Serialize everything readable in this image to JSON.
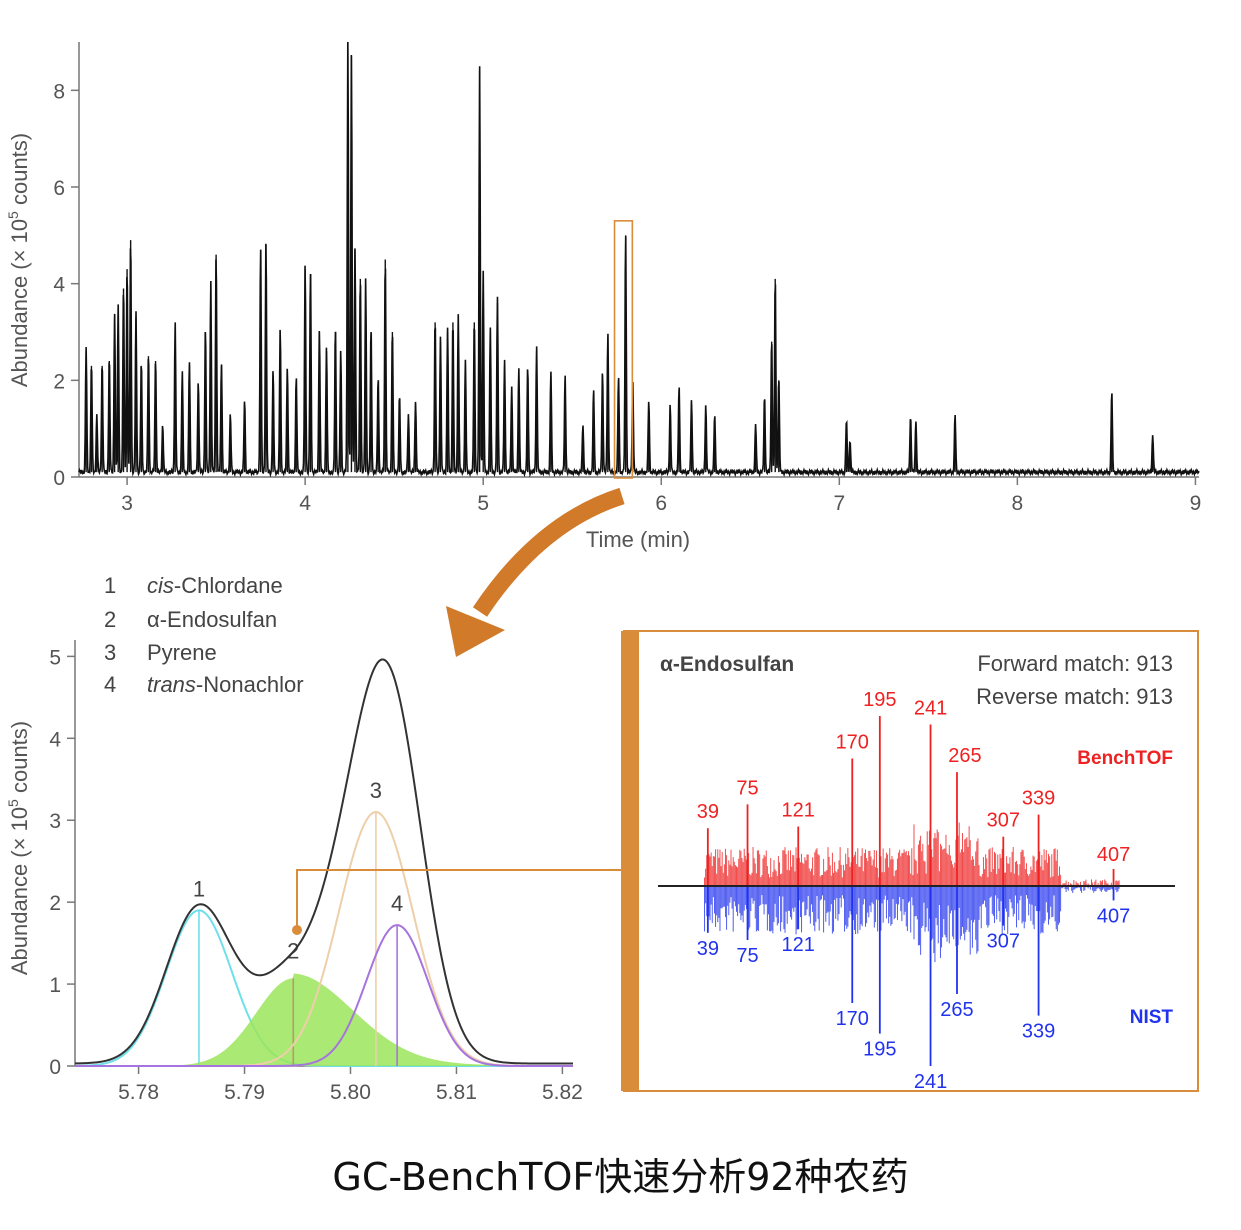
{
  "caption": "GC-BenchTOF快速分析92种农药",
  "chart_data": [
    {
      "type": "line",
      "name": "total ion chromatogram",
      "xlabel": "Time (min)",
      "ylabel": "Abundance (× 10⁵ counts)",
      "ylabel_main": "Abundance (× 10",
      "ylabel_sup": "5",
      "ylabel_end": " counts)",
      "xlim": [
        2.73,
        9.02
      ],
      "ylim": [
        0,
        9
      ],
      "xticks": [
        3,
        4,
        5,
        6,
        7,
        8,
        9
      ],
      "yticks": [
        0,
        2,
        4,
        6,
        8
      ],
      "baseline": 0.1,
      "highlight_window": [
        5.76,
        5.86
      ],
      "highlight_color": "#d98c3a",
      "peaks": [
        [
          2.77,
          2.6
        ],
        [
          2.8,
          2.3
        ],
        [
          2.83,
          1.2
        ],
        [
          2.86,
          2.3
        ],
        [
          2.9,
          2.4
        ],
        [
          2.93,
          3.3
        ],
        [
          2.95,
          3.5
        ],
        [
          2.98,
          3.9
        ],
        [
          3.0,
          4.3
        ],
        [
          3.02,
          4.9
        ],
        [
          3.05,
          3.3
        ],
        [
          3.08,
          2.3
        ],
        [
          3.12,
          2.5
        ],
        [
          3.16,
          2.4
        ],
        [
          3.2,
          1.0
        ],
        [
          3.27,
          3.1
        ],
        [
          3.31,
          2.1
        ],
        [
          3.35,
          2.3
        ],
        [
          3.4,
          1.9
        ],
        [
          3.44,
          3.0
        ],
        [
          3.47,
          4.0
        ],
        [
          3.5,
          4.6
        ],
        [
          3.53,
          2.3
        ],
        [
          3.58,
          1.2
        ],
        [
          3.66,
          1.5
        ],
        [
          3.75,
          4.7
        ],
        [
          3.78,
          4.8
        ],
        [
          3.82,
          2.1
        ],
        [
          3.86,
          3.0
        ],
        [
          3.9,
          2.2
        ],
        [
          3.95,
          2.0
        ],
        [
          4.0,
          4.3
        ],
        [
          4.03,
          4.2
        ],
        [
          4.08,
          3.0
        ],
        [
          4.12,
          2.6
        ],
        [
          4.17,
          3.0
        ],
        [
          4.2,
          2.5
        ],
        [
          4.24,
          9.0
        ],
        [
          4.26,
          8.7
        ],
        [
          4.28,
          4.7
        ],
        [
          4.31,
          4.1
        ],
        [
          4.34,
          4.0
        ],
        [
          4.37,
          3.0
        ],
        [
          4.41,
          2.0
        ],
        [
          4.45,
          4.5
        ],
        [
          4.49,
          3.0
        ],
        [
          4.53,
          1.6
        ],
        [
          4.58,
          1.2
        ],
        [
          4.62,
          1.5
        ],
        [
          4.73,
          3.2
        ],
        [
          4.76,
          2.8
        ],
        [
          4.8,
          3.0
        ],
        [
          4.83,
          3.2
        ],
        [
          4.86,
          3.3
        ],
        [
          4.9,
          2.3
        ],
        [
          4.95,
          3.2
        ],
        [
          4.98,
          8.4
        ],
        [
          5.0,
          4.2
        ],
        [
          5.04,
          3.0
        ],
        [
          5.08,
          3.6
        ],
        [
          5.12,
          2.3
        ],
        [
          5.16,
          1.8
        ],
        [
          5.2,
          2.2
        ],
        [
          5.25,
          2.2
        ],
        [
          5.3,
          2.6
        ],
        [
          5.38,
          2.1
        ],
        [
          5.46,
          2.0
        ],
        [
          5.56,
          1.0
        ],
        [
          5.62,
          1.7
        ],
        [
          5.67,
          2.1
        ],
        [
          5.7,
          2.9
        ],
        [
          5.76,
          2.0
        ],
        [
          5.8,
          5.0
        ],
        [
          5.84,
          1.9
        ],
        [
          5.93,
          1.5
        ],
        [
          6.05,
          1.4
        ],
        [
          6.1,
          1.8
        ],
        [
          6.17,
          1.5
        ],
        [
          6.25,
          1.4
        ],
        [
          6.3,
          1.2
        ],
        [
          6.53,
          1.0
        ],
        [
          6.58,
          1.6
        ],
        [
          6.62,
          2.8
        ],
        [
          6.64,
          4.1
        ],
        [
          6.66,
          2.0
        ],
        [
          7.04,
          1.1
        ],
        [
          7.06,
          0.7
        ],
        [
          7.4,
          1.2
        ],
        [
          7.43,
          1.1
        ],
        [
          7.65,
          1.2
        ],
        [
          8.53,
          1.7
        ],
        [
          8.76,
          0.8
        ]
      ]
    },
    {
      "type": "line",
      "name": "zoomed co-eluting peaks",
      "ylabel": "Abundance (× 10⁵ counts)",
      "ylabel_main": "Abundance (× 10",
      "ylabel_sup": "5",
      "ylabel_end": " counts)",
      "xlim": [
        5.774,
        5.821
      ],
      "ylim": [
        0,
        5.2
      ],
      "xticks": [
        "5.78",
        "5.79",
        "5.80",
        "5.81",
        "5.82"
      ],
      "yticks": [
        "0",
        "1",
        "2",
        "3",
        "4",
        "5"
      ],
      "legend": [
        {
          "num": "1",
          "italic": "cis",
          "rest": "-Chlordane"
        },
        {
          "num": "2",
          "italic": "",
          "rest": "α-Endosulfan"
        },
        {
          "num": "3",
          "italic": "",
          "rest": "Pyrene"
        },
        {
          "num": "4",
          "italic": "trans",
          "rest": "-Nonachlor"
        }
      ],
      "series": [
        {
          "name": "1",
          "label": "1",
          "apex": 5.7857,
          "height": 1.9,
          "sigma": 0.0031,
          "color": "#6fe0ea"
        },
        {
          "name": "2",
          "label": "2",
          "apex": 5.7946,
          "height": 1.07,
          "sigma": 0.0035,
          "color": "#9be55a"
        },
        {
          "name": "3",
          "label": "3",
          "apex": 5.8024,
          "height": 3.1,
          "sigma": 0.0035,
          "color": "#efcfa9"
        },
        {
          "name": "4",
          "label": "4",
          "apex": 5.8044,
          "height": 1.72,
          "sigma": 0.0029,
          "color": "#a674de"
        }
      ],
      "total_color": "#333333"
    },
    {
      "type": "bar",
      "name": "mirror mass spectrum",
      "title": "α-Endosulfan",
      "forward_match": "Forward match: 913",
      "reverse_match": "Reverse match: 913",
      "top_label": "BenchTOF",
      "bottom_label": "NIST",
      "top_color": "#ee2222",
      "bottom_color": "#2233ee",
      "border_color": "#d98c3a",
      "xlim": [
        30,
        440
      ],
      "top_peak_labels": [
        39,
        75,
        121,
        170,
        195,
        241,
        265,
        307,
        339,
        407
      ],
      "top_peak_heights": [
        0.34,
        0.48,
        0.35,
        0.75,
        1.0,
        0.95,
        0.67,
        0.29,
        0.42,
        0.1
      ],
      "bottom_peak_labels": [
        39,
        75,
        121,
        170,
        195,
        241,
        265,
        307,
        339,
        407
      ],
      "bottom_peak_heights": [
        0.26,
        0.3,
        0.24,
        0.65,
        0.82,
        1.0,
        0.6,
        0.22,
        0.72,
        0.08
      ]
    }
  ]
}
